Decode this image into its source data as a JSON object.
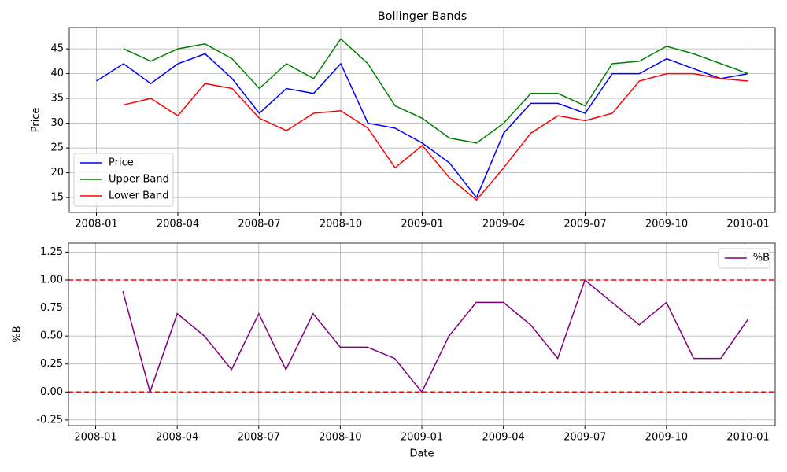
{
  "chart_data": [
    {
      "type": "line",
      "title": "Bollinger Bands",
      "ylabel": "Price",
      "x": [
        "2008-01",
        "2008-02",
        "2008-03",
        "2008-04",
        "2008-05",
        "2008-06",
        "2008-07",
        "2008-08",
        "2008-09",
        "2008-10",
        "2008-11",
        "2008-12",
        "2009-01",
        "2009-02",
        "2009-03",
        "2009-04",
        "2009-05",
        "2009-06",
        "2009-07",
        "2009-08",
        "2009-09",
        "2009-10",
        "2009-11",
        "2009-12",
        "2010-01"
      ],
      "series": [
        {
          "name": "Price",
          "color": "blue",
          "values": [
            38.5,
            42,
            38,
            42,
            44,
            39,
            32,
            37,
            36,
            42,
            30,
            29,
            26,
            22,
            15,
            28,
            34,
            34,
            32,
            40,
            40,
            43,
            41,
            39,
            40
          ]
        },
        {
          "name": "Upper Band",
          "color": "green",
          "values": [
            null,
            45,
            42.5,
            45,
            46,
            43,
            37,
            42,
            39,
            47,
            42,
            33.5,
            31,
            27,
            26,
            30,
            36,
            36,
            33.5,
            42,
            42.5,
            45.5,
            44,
            42,
            40
          ]
        },
        {
          "name": "Lower Band",
          "color": "red",
          "values": [
            null,
            33.7,
            35,
            31.5,
            38,
            37,
            31,
            28.5,
            32,
            32.5,
            29,
            21,
            25.5,
            19,
            14.5,
            21,
            28,
            31.5,
            30.5,
            32,
            38.5,
            40,
            40,
            39,
            38.5
          ]
        }
      ],
      "xlim": [
        "2007-12",
        "2010-02"
      ],
      "xticks": [
        "2008-01",
        "2008-04",
        "2008-07",
        "2008-10",
        "2009-01",
        "2009-04",
        "2009-07",
        "2009-10",
        "2010-01"
      ],
      "ylim": [
        12,
        49.3
      ],
      "yticks": [
        15,
        20,
        25,
        30,
        35,
        40,
        45
      ],
      "grid": true,
      "legend": "lower left"
    },
    {
      "type": "line",
      "xlabel": "Date",
      "ylabel": "%B",
      "x": [
        "2008-02",
        "2008-03",
        "2008-04",
        "2008-05",
        "2008-06",
        "2008-07",
        "2008-08",
        "2008-09",
        "2008-10",
        "2008-11",
        "2008-12",
        "2009-01",
        "2009-02",
        "2009-03",
        "2009-04",
        "2009-05",
        "2009-06",
        "2009-07",
        "2009-08",
        "2009-09",
        "2009-10",
        "2009-11",
        "2009-12",
        "2010-01"
      ],
      "series": [
        {
          "name": "%B",
          "color": "purple",
          "values": [
            0.9,
            0.0,
            0.7,
            0.5,
            0.2,
            0.7,
            0.2,
            0.7,
            0.4,
            0.4,
            0.3,
            0.0,
            0.5,
            0.8,
            0.8,
            0.6,
            0.3,
            1.0,
            0.8,
            0.6,
            0.8,
            0.3,
            0.3,
            0.65
          ]
        }
      ],
      "hlines": {
        "values": [
          1,
          0
        ],
        "color": "red"
      },
      "xlim": [
        "2007-12",
        "2010-02"
      ],
      "xticks": [
        "2008-01",
        "2008-04",
        "2008-07",
        "2008-10",
        "2009-01",
        "2009-04",
        "2009-07",
        "2009-10",
        "2010-01"
      ],
      "ylim": [
        -0.3,
        1.33
      ],
      "yticks": [
        -0.25,
        {
          "value": 0,
          "label": "0.00"
        },
        0.25,
        {
          "value": 0.5,
          "label": "0.50"
        },
        0.75,
        {
          "value": 1,
          "label": "1.00"
        },
        1.25
      ],
      "grid": true,
      "legend": "upper right"
    }
  ]
}
